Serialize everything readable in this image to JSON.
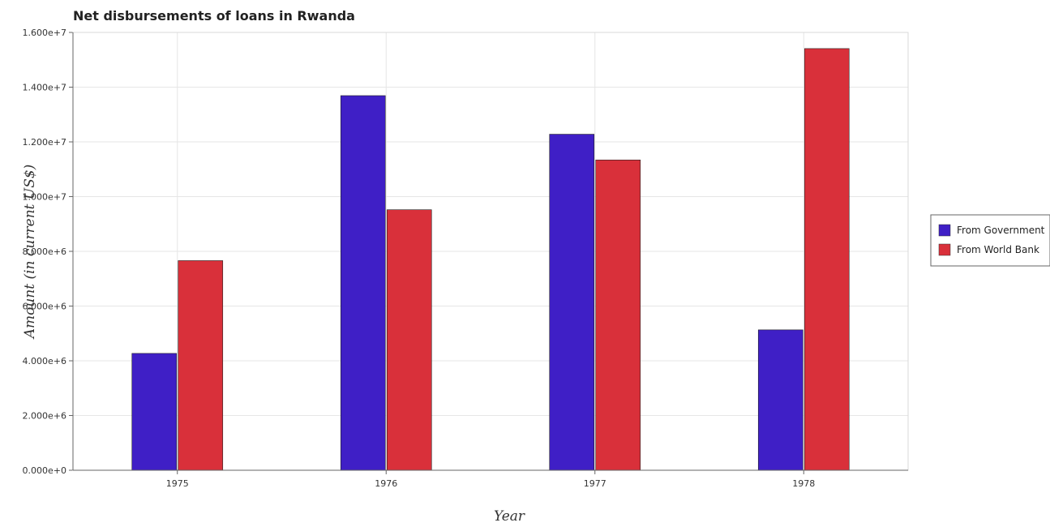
{
  "chart_data": {
    "type": "bar",
    "title": "Net disbursements of loans in Rwanda",
    "xlabel": "Year",
    "ylabel": "Amount (in current US$)",
    "categories": [
      "1975",
      "1976",
      "1977",
      "1978"
    ],
    "series": [
      {
        "name": "From Government",
        "color": "#3f1fc6",
        "values": [
          4270000,
          13690000,
          12280000,
          5130000
        ]
      },
      {
        "name": "From World Bank",
        "color": "#d9303a",
        "values": [
          7660000,
          9520000,
          11340000,
          15410000
        ]
      }
    ],
    "ylim": [
      0,
      16000000
    ],
    "yticks": [
      0,
      2000000,
      4000000,
      6000000,
      8000000,
      10000000,
      12000000,
      14000000,
      16000000
    ],
    "ytick_labels": [
      "0.000e+0",
      "2.000e+6",
      "4.000e+6",
      "6.000e+6",
      "8.000e+6",
      "1.000e+7",
      "1.200e+7",
      "1.400e+7",
      "1.600e+7"
    ],
    "grid": true,
    "legend_position": "right"
  }
}
